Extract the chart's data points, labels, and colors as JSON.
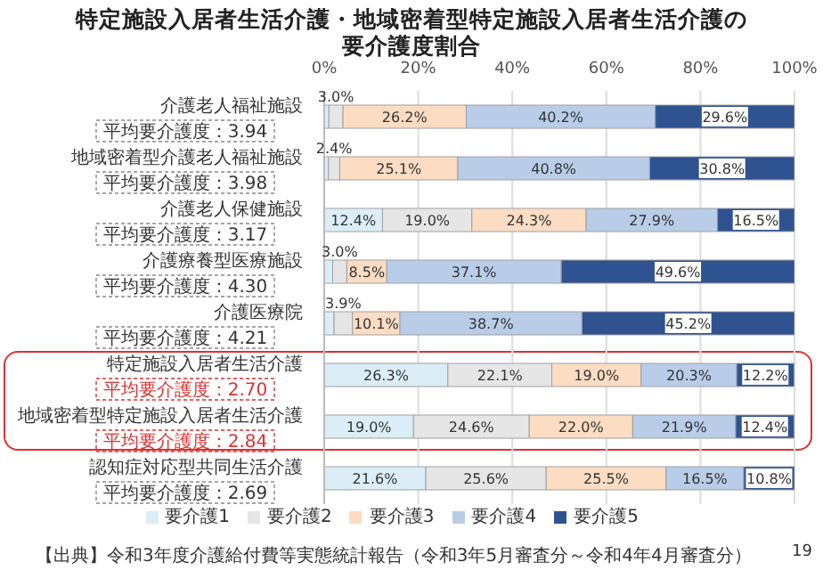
{
  "chart_data": {
    "type": "bar",
    "orientation": "horizontal",
    "stacked": true,
    "title": "特定施設入居者生活介護・地域密着型特定施設入居者生活介護の要介護度割合",
    "categories": [
      "介護老人福祉施設",
      "地域密着型介護老人福祉施設",
      "介護老人保健施設",
      "介護療養型医療施設",
      "介護医療院",
      "特定施設入居者生活介護",
      "地域密着型特定施設入居者生活介護",
      "認知症対応型共同生活介護"
    ],
    "series": [
      {
        "name": "要介護1",
        "color": "#dbeef7",
        "values": [
          1.0,
          0.9,
          12.4,
          1.8,
          2.1,
          26.3,
          19.0,
          21.6
        ],
        "value_labels": [
          null,
          null,
          "12.4%",
          null,
          null,
          "26.3%",
          "19.0%",
          "21.6%"
        ]
      },
      {
        "name": "要介護2",
        "color": "#e6e6e6",
        "values": [
          3.0,
          2.4,
          19.0,
          3.0,
          3.9,
          22.1,
          24.6,
          25.6
        ],
        "value_labels": [
          "3.0%",
          "2.4%",
          "19.0%",
          "3.0%",
          "3.9%",
          "22.1%",
          "24.6%",
          "25.6%"
        ]
      },
      {
        "name": "要介護3",
        "color": "#fcdcc2",
        "values": [
          26.2,
          25.1,
          24.3,
          8.5,
          10.1,
          19.0,
          22.0,
          25.5
        ],
        "value_labels": [
          "26.2%",
          "25.1%",
          "24.3%",
          "8.5%",
          "10.1%",
          "19.0%",
          "22.0%",
          "25.5%"
        ]
      },
      {
        "name": "要介護4",
        "color": "#b9cde8",
        "values": [
          40.2,
          40.8,
          27.9,
          37.1,
          38.7,
          20.3,
          21.9,
          16.5
        ],
        "value_labels": [
          "40.2%",
          "40.8%",
          "27.9%",
          "37.1%",
          "38.7%",
          "20.3%",
          "21.9%",
          "16.5%"
        ]
      },
      {
        "name": "要介護5",
        "color": "#2f5290",
        "values": [
          29.6,
          30.8,
          16.5,
          49.6,
          45.2,
          12.2,
          12.4,
          10.8
        ],
        "value_labels": [
          "29.6%",
          "30.8%",
          "16.5%",
          "49.6%",
          "45.2%",
          "12.2%",
          "12.4%",
          "10.8%"
        ]
      }
    ],
    "xlim": [
      0,
      100
    ],
    "xticks": [
      {
        "value": 0,
        "label": "0%"
      },
      {
        "value": 20,
        "label": "20%"
      },
      {
        "value": 40,
        "label": "40%"
      },
      {
        "value": 60,
        "label": "60%"
      },
      {
        "value": 80,
        "label": "80%"
      },
      {
        "value": 100,
        "label": "100%"
      }
    ],
    "grid": "x",
    "legend": "bottom",
    "annotations": [
      "平均要介護度：3.94",
      "平均要介護度：3.98",
      "平均要介護度：3.17",
      "平均要介護度：4.30",
      "平均要介護度：4.21",
      "平均要介護度：2.70",
      "平均要介護度：2.84",
      "平均要介護度：2.69",
      "【出典】令和3年度介護給付費等実態統計報告（令和3年5月審査分～令和4年4月審査分）",
      "19"
    ]
  }
}
